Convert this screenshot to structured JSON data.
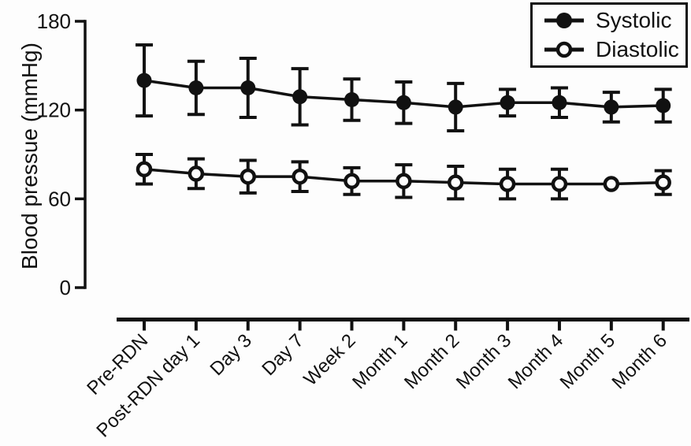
{
  "figure": {
    "background": "#fdfdfd",
    "ink_color": "#111111"
  },
  "legend": {
    "position": "top-right",
    "entries": [
      {
        "label": "Systolic",
        "marker": "filled-circle"
      },
      {
        "label": "Diastolic",
        "marker": "open-circle"
      }
    ]
  },
  "chart_data": {
    "type": "line",
    "title": "",
    "xlabel": "",
    "ylabel": "Blood pressue (mmHg)",
    "ylim": [
      0,
      180
    ],
    "yticks": [
      0,
      60,
      120,
      180
    ],
    "grid": false,
    "legend_position": "top-right",
    "error_bars": true,
    "categories": [
      "Pre-RDN",
      "Post-RDN day 1",
      "Day 3",
      "Day 7",
      "Week 2",
      "Month 1",
      "Month 2",
      "Month 3",
      "Month 4",
      "Month 5",
      "Month 6"
    ],
    "series": [
      {
        "name": "Systolic",
        "marker": "filled-circle",
        "color": "#111111",
        "values": [
          140,
          135,
          135,
          129,
          127,
          125,
          122,
          125,
          125,
          122,
          123
        ],
        "errors": [
          24,
          18,
          20,
          19,
          14,
          14,
          16,
          9,
          10,
          10,
          11
        ]
      },
      {
        "name": "Diastolic",
        "marker": "open-circle",
        "color": "#111111",
        "values": [
          80,
          77,
          75,
          75,
          72,
          72,
          71,
          70,
          70,
          70,
          71
        ],
        "errors": [
          10,
          10,
          11,
          10,
          9,
          11,
          11,
          10,
          10,
          4,
          8
        ]
      }
    ]
  }
}
